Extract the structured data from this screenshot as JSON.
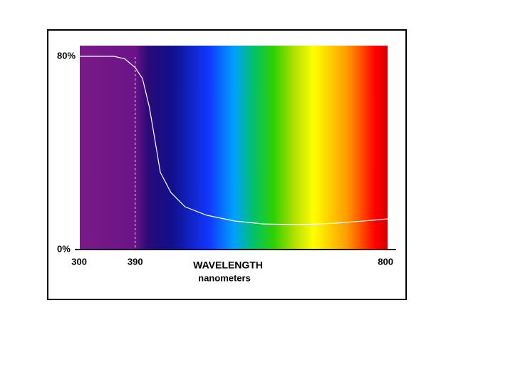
{
  "chart_data": {
    "type": "line",
    "x_label": "WAVELENGTH",
    "x_sublabel": "nanometers",
    "x": [
      300,
      355.6,
      372.9,
      390,
      401.9,
      413,
      419,
      430.8,
      448,
      471,
      506,
      552,
      598.6,
      656.5,
      714,
      760.6,
      800
    ],
    "values": [
      80,
      80,
      79,
      75.3,
      70.8,
      59,
      50,
      32,
      23.6,
      17.7,
      14.2,
      11.8,
      10.6,
      10.3,
      10.9,
      11.8,
      12.7
    ],
    "color": "#ffffff",
    "xlim": [
      300,
      800
    ],
    "xticks": [
      300,
      390,
      800
    ],
    "ylim": [
      0,
      80
    ],
    "yticks": [
      {
        "value": 0,
        "label": "0%"
      },
      {
        "value": 80,
        "label": "80%"
      }
    ]
  }
}
